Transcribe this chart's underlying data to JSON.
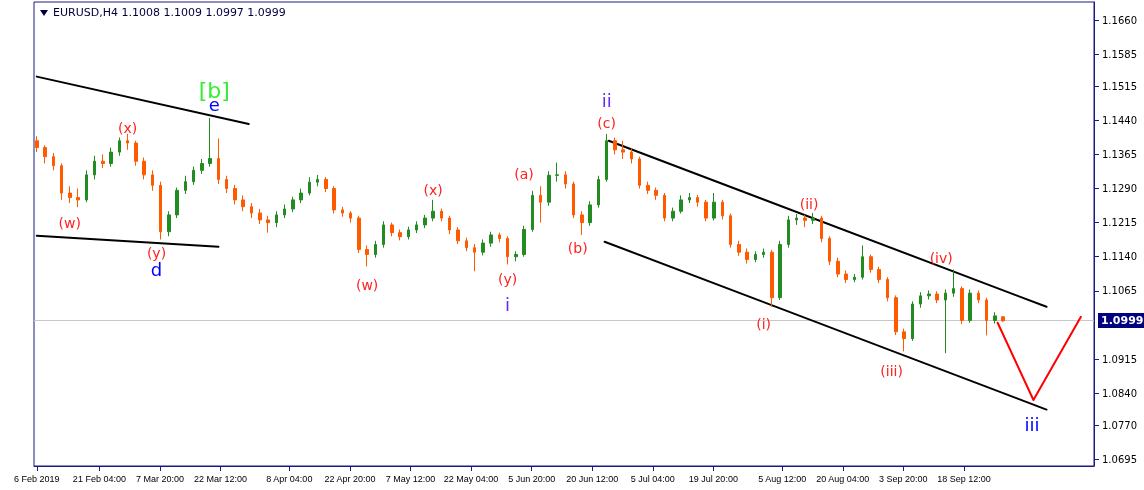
{
  "chart_data": {
    "type": "candlestick",
    "title": "EURUSD,H4  1.1008 1.1009 1.0997 1.0999",
    "x": [
      "2019-02-06",
      "2019-02-08",
      "2019-02-10",
      "2019-02-12",
      "2019-02-14",
      "2019-02-16",
      "2019-02-18",
      "2019-02-20",
      "2019-02-22",
      "2019-02-24",
      "2019-02-26",
      "2019-02-28",
      "2019-03-02",
      "2019-03-04",
      "2019-03-06",
      "2019-03-08",
      "2019-03-10",
      "2019-03-12",
      "2019-03-14",
      "2019-03-16",
      "2019-03-18",
      "2019-03-20",
      "2019-03-22",
      "2019-03-24",
      "2019-03-26",
      "2019-03-28",
      "2019-03-30",
      "2019-04-01",
      "2019-04-03",
      "2019-04-05",
      "2019-04-07",
      "2019-04-09",
      "2019-04-11",
      "2019-04-13",
      "2019-04-15",
      "2019-04-17",
      "2019-04-19",
      "2019-04-21",
      "2019-04-23",
      "2019-04-25",
      "2019-04-27",
      "2019-04-29",
      "2019-05-01",
      "2019-05-03",
      "2019-05-05",
      "2019-05-07",
      "2019-05-09",
      "2019-05-11",
      "2019-05-13",
      "2019-05-15",
      "2019-05-17",
      "2019-05-19",
      "2019-05-21",
      "2019-05-23",
      "2019-05-25",
      "2019-05-27",
      "2019-05-29",
      "2019-05-31",
      "2019-06-02",
      "2019-06-04",
      "2019-06-06",
      "2019-06-08",
      "2019-06-10",
      "2019-06-12",
      "2019-06-14",
      "2019-06-16",
      "2019-06-18",
      "2019-06-20",
      "2019-06-22",
      "2019-06-24",
      "2019-06-26",
      "2019-06-28",
      "2019-06-30",
      "2019-07-02",
      "2019-07-04",
      "2019-07-06",
      "2019-07-08",
      "2019-07-10",
      "2019-07-12",
      "2019-07-14",
      "2019-07-16",
      "2019-07-18",
      "2019-07-20",
      "2019-07-22",
      "2019-07-24",
      "2019-07-26",
      "2019-07-28",
      "2019-07-30",
      "2019-08-01",
      "2019-08-03",
      "2019-08-05",
      "2019-08-07",
      "2019-08-09",
      "2019-08-11",
      "2019-08-13",
      "2019-08-15",
      "2019-08-17",
      "2019-08-19",
      "2019-08-21",
      "2019-08-23",
      "2019-08-25",
      "2019-08-27",
      "2019-08-29",
      "2019-08-31",
      "2019-09-02",
      "2019-09-04",
      "2019-09-06",
      "2019-09-08",
      "2019-09-10",
      "2019-09-12",
      "2019-09-14",
      "2019-09-16",
      "2019-09-18",
      "2019-09-20",
      "2019-09-22",
      "2019-09-24",
      "2019-09-26",
      "2019-09-28"
    ],
    "ohlc": [
      [
        1.1395,
        1.1405,
        1.137,
        1.138
      ],
      [
        1.138,
        1.1385,
        1.1345,
        1.136
      ],
      [
        1.136,
        1.1368,
        1.133,
        1.134
      ],
      [
        1.134,
        1.1345,
        1.1265,
        1.128
      ],
      [
        1.128,
        1.1295,
        1.1258,
        1.127
      ],
      [
        1.127,
        1.129,
        1.1249,
        1.1265
      ],
      [
        1.1265,
        1.133,
        1.126,
        1.132
      ],
      [
        1.132,
        1.1362,
        1.131,
        1.135
      ],
      [
        1.135,
        1.1365,
        1.1335,
        1.1345
      ],
      [
        1.1345,
        1.138,
        1.1338,
        1.137
      ],
      [
        1.137,
        1.1402,
        1.1362,
        1.1395
      ],
      [
        1.1395,
        1.141,
        1.1375,
        1.139
      ],
      [
        1.139,
        1.1395,
        1.134,
        1.135
      ],
      [
        1.135,
        1.1358,
        1.131,
        1.132
      ],
      [
        1.132,
        1.133,
        1.1285,
        1.1297
      ],
      [
        1.1297,
        1.1305,
        1.1178,
        1.1195
      ],
      [
        1.1195,
        1.124,
        1.1185,
        1.1232
      ],
      [
        1.1232,
        1.1292,
        1.1225,
        1.1286
      ],
      [
        1.1286,
        1.1318,
        1.1278,
        1.1305
      ],
      [
        1.1305,
        1.1338,
        1.1298,
        1.133
      ],
      [
        1.133,
        1.1355,
        1.1322,
        1.1345
      ],
      [
        1.1345,
        1.1445,
        1.1338,
        1.1356
      ],
      [
        1.1356,
        1.14,
        1.13,
        1.131
      ],
      [
        1.131,
        1.1318,
        1.128,
        1.129
      ],
      [
        1.129,
        1.1298,
        1.1255,
        1.1265
      ],
      [
        1.1265,
        1.1275,
        1.124,
        1.125
      ],
      [
        1.125,
        1.1258,
        1.1225,
        1.1236
      ],
      [
        1.1236,
        1.1245,
        1.1212,
        1.1221
      ],
      [
        1.1221,
        1.123,
        1.1193,
        1.1215
      ],
      [
        1.1215,
        1.124,
        1.1205,
        1.1232
      ],
      [
        1.1232,
        1.1255,
        1.1225,
        1.1245
      ],
      [
        1.1245,
        1.1272,
        1.1238,
        1.1265
      ],
      [
        1.1265,
        1.129,
        1.1258,
        1.128
      ],
      [
        1.128,
        1.1315,
        1.1275,
        1.1304
      ],
      [
        1.1304,
        1.132,
        1.1295,
        1.131
      ],
      [
        1.131,
        1.1315,
        1.1282,
        1.129
      ],
      [
        1.129,
        1.1295,
        1.1235,
        1.1243
      ],
      [
        1.1243,
        1.125,
        1.1228,
        1.1236
      ],
      [
        1.1236,
        1.124,
        1.1215,
        1.1225
      ],
      [
        1.1225,
        1.123,
        1.1148,
        1.1156
      ],
      [
        1.1156,
        1.1165,
        1.1119,
        1.1145
      ],
      [
        1.1145,
        1.1175,
        1.1138,
        1.1167
      ],
      [
        1.1167,
        1.1218,
        1.116,
        1.121
      ],
      [
        1.121,
        1.1215,
        1.1185,
        1.1193
      ],
      [
        1.1193,
        1.12,
        1.1176,
        1.1184
      ],
      [
        1.1184,
        1.1206,
        1.1178,
        1.1199
      ],
      [
        1.1199,
        1.1218,
        1.1192,
        1.121
      ],
      [
        1.121,
        1.1232,
        1.1203,
        1.1225
      ],
      [
        1.1225,
        1.1265,
        1.1218,
        1.124
      ],
      [
        1.124,
        1.1246,
        1.1218,
        1.1225
      ],
      [
        1.1225,
        1.123,
        1.119,
        1.1199
      ],
      [
        1.1199,
        1.1205,
        1.1168,
        1.1175
      ],
      [
        1.1175,
        1.1182,
        1.1152,
        1.116
      ],
      [
        1.116,
        1.1168,
        1.1108,
        1.115
      ],
      [
        1.115,
        1.1178,
        1.1143,
        1.117
      ],
      [
        1.117,
        1.1195,
        1.1162,
        1.1188
      ],
      [
        1.1188,
        1.1193,
        1.1172,
        1.118
      ],
      [
        1.118,
        1.1185,
        1.1123,
        1.114
      ],
      [
        1.114,
        1.1152,
        1.113,
        1.1145
      ],
      [
        1.1145,
        1.1208,
        1.114,
        1.12
      ],
      [
        1.12,
        1.1285,
        1.1195,
        1.1275
      ],
      [
        1.1275,
        1.1295,
        1.1215,
        1.126
      ],
      [
        1.126,
        1.1328,
        1.1252,
        1.1319
      ],
      [
        1.1319,
        1.1347,
        1.1305,
        1.132
      ],
      [
        1.132,
        1.1328,
        1.129,
        1.13
      ],
      [
        1.13,
        1.1305,
        1.1225,
        1.1232
      ],
      [
        1.1232,
        1.124,
        1.1188,
        1.1215
      ],
      [
        1.1215,
        1.1262,
        1.1208,
        1.1254
      ],
      [
        1.1254,
        1.1318,
        1.1248,
        1.131
      ],
      [
        1.131,
        1.141,
        1.1305,
        1.1395
      ],
      [
        1.1395,
        1.1402,
        1.1365,
        1.1375
      ],
      [
        1.1375,
        1.1395,
        1.1355,
        1.137
      ],
      [
        1.137,
        1.1378,
        1.1345,
        1.1355
      ],
      [
        1.1355,
        1.136,
        1.129,
        1.1297
      ],
      [
        1.1297,
        1.1305,
        1.1278,
        1.1286
      ],
      [
        1.1286,
        1.1292,
        1.1265,
        1.1275
      ],
      [
        1.1275,
        1.128,
        1.1218,
        1.1225
      ],
      [
        1.1225,
        1.1248,
        1.1218,
        1.124
      ],
      [
        1.124,
        1.1275,
        1.1235,
        1.1265
      ],
      [
        1.1265,
        1.128,
        1.1258,
        1.127
      ],
      [
        1.127,
        1.1276,
        1.125,
        1.126
      ],
      [
        1.126,
        1.1265,
        1.1218,
        1.1225
      ],
      [
        1.1225,
        1.128,
        1.122,
        1.126
      ],
      [
        1.126,
        1.1265,
        1.1222,
        1.123
      ],
      [
        1.123,
        1.1235,
        1.116,
        1.1167
      ],
      [
        1.1167,
        1.1175,
        1.1142,
        1.115
      ],
      [
        1.115,
        1.1158,
        1.1125,
        1.1134
      ],
      [
        1.1134,
        1.1152,
        1.1128,
        1.1145
      ],
      [
        1.1145,
        1.1158,
        1.1138,
        1.115
      ],
      [
        1.115,
        1.1155,
        1.103,
        1.105
      ],
      [
        1.105,
        1.1175,
        1.1045,
        1.1167
      ],
      [
        1.1167,
        1.123,
        1.116,
        1.1221
      ],
      [
        1.1221,
        1.1234,
        1.121,
        1.1225
      ],
      [
        1.1225,
        1.1232,
        1.1205,
        1.122
      ],
      [
        1.122,
        1.1236,
        1.1212,
        1.1225
      ],
      [
        1.1225,
        1.123,
        1.1172,
        1.118
      ],
      [
        1.118,
        1.1185,
        1.1122,
        1.113
      ],
      [
        1.113,
        1.1138,
        1.1095,
        1.1102
      ],
      [
        1.1102,
        1.111,
        1.1082,
        1.109
      ],
      [
        1.109,
        1.1102,
        1.1084,
        1.1095
      ],
      [
        1.1095,
        1.1165,
        1.109,
        1.114
      ],
      [
        1.114,
        1.1145,
        1.1105,
        1.1112
      ],
      [
        1.1112,
        1.1118,
        1.1082,
        1.109
      ],
      [
        1.109,
        1.1095,
        1.1042,
        1.105
      ],
      [
        1.105,
        1.1055,
        1.0968,
        1.0975
      ],
      [
        1.0975,
        1.0982,
        1.0932,
        1.096
      ],
      [
        1.096,
        1.1042,
        1.0955,
        1.1036
      ],
      [
        1.1036,
        1.1062,
        1.1028,
        1.1054
      ],
      [
        1.1054,
        1.1066,
        1.1046,
        1.1058
      ],
      [
        1.1058,
        1.1064,
        1.1038,
        1.1045
      ],
      [
        1.1045,
        1.1068,
        1.0928,
        1.106
      ],
      [
        1.106,
        1.1112,
        1.1052,
        1.107
      ],
      [
        1.107,
        1.1075,
        1.0992,
        1.1
      ],
      [
        1.1,
        1.1068,
        1.0995,
        1.106
      ],
      [
        1.106,
        1.1066,
        1.1038,
        1.1045
      ],
      [
        1.1045,
        1.105,
        1.0967,
        1.1
      ],
      [
        1.1,
        1.1018,
        1.0993,
        1.101
      ],
      [
        1.1008,
        1.1009,
        1.0997,
        1.0999
      ]
    ],
    "colors": [
      "#ff5a00",
      "#ff5a00",
      "#ff5a00",
      "#ff5a00",
      "#ff5a00",
      "#ff5a00",
      "#228b22",
      "#228b22",
      "#ff5a00",
      "#228b22",
      "#228b22",
      "#ff5a00",
      "#ff5a00",
      "#ff5a00",
      "#ff5a00",
      "#ff5a00",
      "#228b22",
      "#228b22",
      "#228b22",
      "#228b22",
      "#228b22",
      "#228b22",
      "#ff5a00",
      "#ff5a00",
      "#ff5a00",
      "#ff5a00",
      "#ff5a00",
      "#ff5a00",
      "#ff5a00",
      "#228b22",
      "#228b22",
      "#228b22",
      "#228b22",
      "#228b22",
      "#228b22",
      "#ff5a00",
      "#ff5a00",
      "#ff5a00",
      "#ff5a00",
      "#ff5a00",
      "#ff5a00",
      "#228b22",
      "#228b22",
      "#ff5a00",
      "#ff5a00",
      "#228b22",
      "#228b22",
      "#228b22",
      "#228b22",
      "#ff5a00",
      "#ff5a00",
      "#ff5a00",
      "#ff5a00",
      "#ff5a00",
      "#228b22",
      "#228b22",
      "#ff5a00",
      "#ff5a00",
      "#228b22",
      "#228b22",
      "#228b22",
      "#ff5a00",
      "#228b22",
      "#228b22",
      "#ff5a00",
      "#ff5a00",
      "#ff5a00",
      "#228b22",
      "#228b22",
      "#228b22",
      "#ff5a00",
      "#ff5a00",
      "#ff5a00",
      "#ff5a00",
      "#ff5a00",
      "#ff5a00",
      "#ff5a00",
      "#228b22",
      "#228b22",
      "#228b22",
      "#ff5a00",
      "#ff5a00",
      "#228b22",
      "#ff5a00",
      "#ff5a00",
      "#ff5a00",
      "#ff5a00",
      "#228b22",
      "#228b22",
      "#ff5a00",
      "#228b22",
      "#228b22",
      "#228b22",
      "#ff5a00",
      "#228b22",
      "#ff5a00",
      "#ff5a00",
      "#ff5a00",
      "#ff5a00",
      "#228b22",
      "#228b22",
      "#ff5a00",
      "#ff5a00",
      "#ff5a00",
      "#ff5a00",
      "#ff5a00",
      "#228b22",
      "#228b22",
      "#228b22",
      "#ff5a00",
      "#228b22",
      "#228b22",
      "#ff5a00",
      "#228b22",
      "#ff5a00",
      "#ff5a00",
      "#228b22",
      "#ff5a00"
    ],
    "series": [
      {
        "type": "line",
        "color": "#000000",
        "x": [
          "2019-02-06",
          "2019-03-29T08:00"
        ],
        "values": [
          1.1536,
          1.1432
        ]
      },
      {
        "type": "line",
        "color": "#000000",
        "x": [
          "2019-02-06",
          "2019-03-22"
        ],
        "values": [
          1.1186,
          1.1162
        ]
      },
      {
        "type": "line",
        "color": "#000000",
        "x": [
          "2019-06-24T12:00",
          "2019-10-08T12:00"
        ],
        "values": [
          1.1395,
          1.103
        ]
      },
      {
        "type": "line",
        "color": "#000000",
        "x": [
          "2019-06-23T12:00",
          "2019-10-08T12:00"
        ],
        "values": [
          1.1173,
          1.0804
        ]
      },
      {
        "type": "line",
        "color": "#ff0000",
        "x": [
          "2019-09-26T16:00",
          "2019-10-05T08:00",
          "2019-10-16T20:00"
        ],
        "values": [
          1.0995,
          1.0825,
          1.1008
        ]
      }
    ],
    "ref_lines": [
      {
        "axis": "y",
        "value": 1.0999,
        "label": "1.0999",
        "color": "#c8c8c8"
      }
    ],
    "annotations": [
      "(w)",
      "(x)",
      "(y)",
      "d",
      "e",
      "[b]",
      "(w)",
      "(x)",
      "(y)",
      "i",
      "(a)",
      "(b)",
      "(c)",
      "ii",
      "(i)",
      "(ii)",
      "(iii)",
      "(iv)",
      "iii"
    ],
    "xlim": [
      "2019-02-05T08:00",
      "2019-10-20T00:00"
    ],
    "xticks": [
      {
        "value": "2019-02-06T00:00",
        "label": "6 Feb 2019"
      },
      {
        "value": "2019-02-21T04:00",
        "label": "21 Feb 04:00"
      },
      {
        "value": "2019-03-07T20:00",
        "label": "7 Mar 20:00"
      },
      {
        "value": "2019-03-22T12:00",
        "label": "22 Mar 12:00"
      },
      {
        "value": "2019-04-08T04:00",
        "label": "8 Apr 04:00"
      },
      {
        "value": "2019-04-22T20:00",
        "label": "22 Apr 20:00"
      },
      {
        "value": "2019-05-07T12:00",
        "label": "7 May 12:00"
      },
      {
        "value": "2019-05-22T04:00",
        "label": "22 May 04:00"
      },
      {
        "value": "2019-06-05T20:00",
        "label": "5 Jun 20:00"
      },
      {
        "value": "2019-06-20T12:00",
        "label": "20 Jun 12:00"
      },
      {
        "value": "2019-07-05T04:00",
        "label": "5 Jul 04:00"
      },
      {
        "value": "2019-07-19T20:00",
        "label": "19 Jul 20:00"
      },
      {
        "value": "2019-08-05T12:00",
        "label": "5 Aug 12:00"
      },
      {
        "value": "2019-08-20T04:00",
        "label": "20 Aug 04:00"
      },
      {
        "value": "2019-09-03T20:00",
        "label": "3 Sep 20:00"
      },
      {
        "value": "2019-09-18T12:00",
        "label": "18 Sep 12:00"
      }
    ],
    "ylim": [
      1.068,
      1.17
    ],
    "yticks": [
      1.0695,
      {
        "value": 1.077,
        "label": "1.0770"
      },
      {
        "value": 1.084,
        "label": "1.0840"
      },
      1.0915,
      1.1065,
      {
        "value": 1.114,
        "label": "1.1140"
      },
      1.1215,
      {
        "value": 1.129,
        "label": "1.1290"
      },
      1.1365,
      {
        "value": 1.144,
        "label": "1.1440"
      },
      1.1515,
      1.1585,
      {
        "value": 1.166,
        "label": "1.1660"
      }
    ],
    "grid": false,
    "marker": "none",
    "line_style": "solid"
  }
}
